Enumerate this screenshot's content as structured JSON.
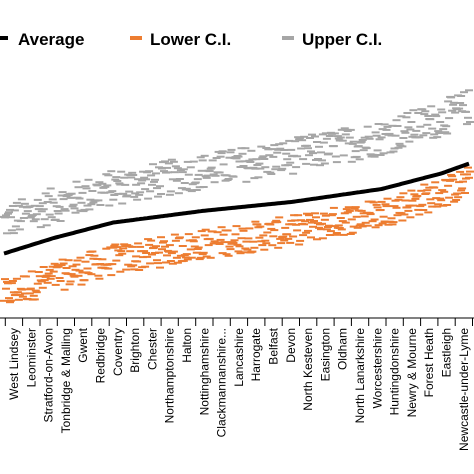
{
  "chart_data": {
    "type": "scatter",
    "title": "",
    "xlabel": "",
    "ylabel": "",
    "legend": {
      "placement": "top",
      "entries": [
        {
          "name": "Average",
          "color": "#000000",
          "marker": "line"
        },
        {
          "name": "Lower C.I.",
          "color": "#ED7D31",
          "marker": "dash"
        },
        {
          "name": "Upper C.I.",
          "color": "#A6A6A6",
          "marker": "dash"
        }
      ]
    },
    "categories": [
      "West Lindsey",
      "Leominster",
      "Stratford-on-Avon",
      "Tonbridge & Malling",
      "Gwent",
      "Redbridge",
      "Coventry",
      "Brighton",
      "Chester",
      "Northamptonshire",
      "Halton",
      "Nottinghamshire",
      "Clackmannanshire...",
      "Lancashire",
      "Harrogate",
      "Belfast",
      "Devon",
      "North Kesteven",
      "Easington",
      "Oldham",
      "North Lanarkshire",
      "Worcestershire",
      "Huntingdonshire",
      "Newry & Mourne",
      "Forest Heath",
      "Eastleigh",
      "Newcastle-under-Lyme"
    ],
    "n_points": 470,
    "ylim": [
      0,
      1
    ],
    "grid": false,
    "series": [
      {
        "name": "Average",
        "color": "#000000",
        "anchors": [
          [
            0,
            0.25
          ],
          [
            50,
            0.31
          ],
          [
            110,
            0.37
          ],
          [
            200,
            0.415
          ],
          [
            290,
            0.45
          ],
          [
            380,
            0.5
          ],
          [
            440,
            0.56
          ],
          [
            469,
            0.6
          ]
        ]
      },
      {
        "name": "Lower C.I.",
        "color": "#ED7D31",
        "offset_from_average": [
          [
            0,
            -0.16
          ],
          [
            150,
            -0.14
          ],
          [
            300,
            -0.11
          ],
          [
            469,
            -0.07
          ]
        ],
        "spread": 0.12
      },
      {
        "name": "Upper C.I.",
        "color": "#A6A6A6",
        "offset_from_average": [
          [
            0,
            0.12
          ],
          [
            150,
            0.14
          ],
          [
            300,
            0.18
          ],
          [
            469,
            0.22
          ]
        ],
        "spread": 0.14
      }
    ]
  }
}
